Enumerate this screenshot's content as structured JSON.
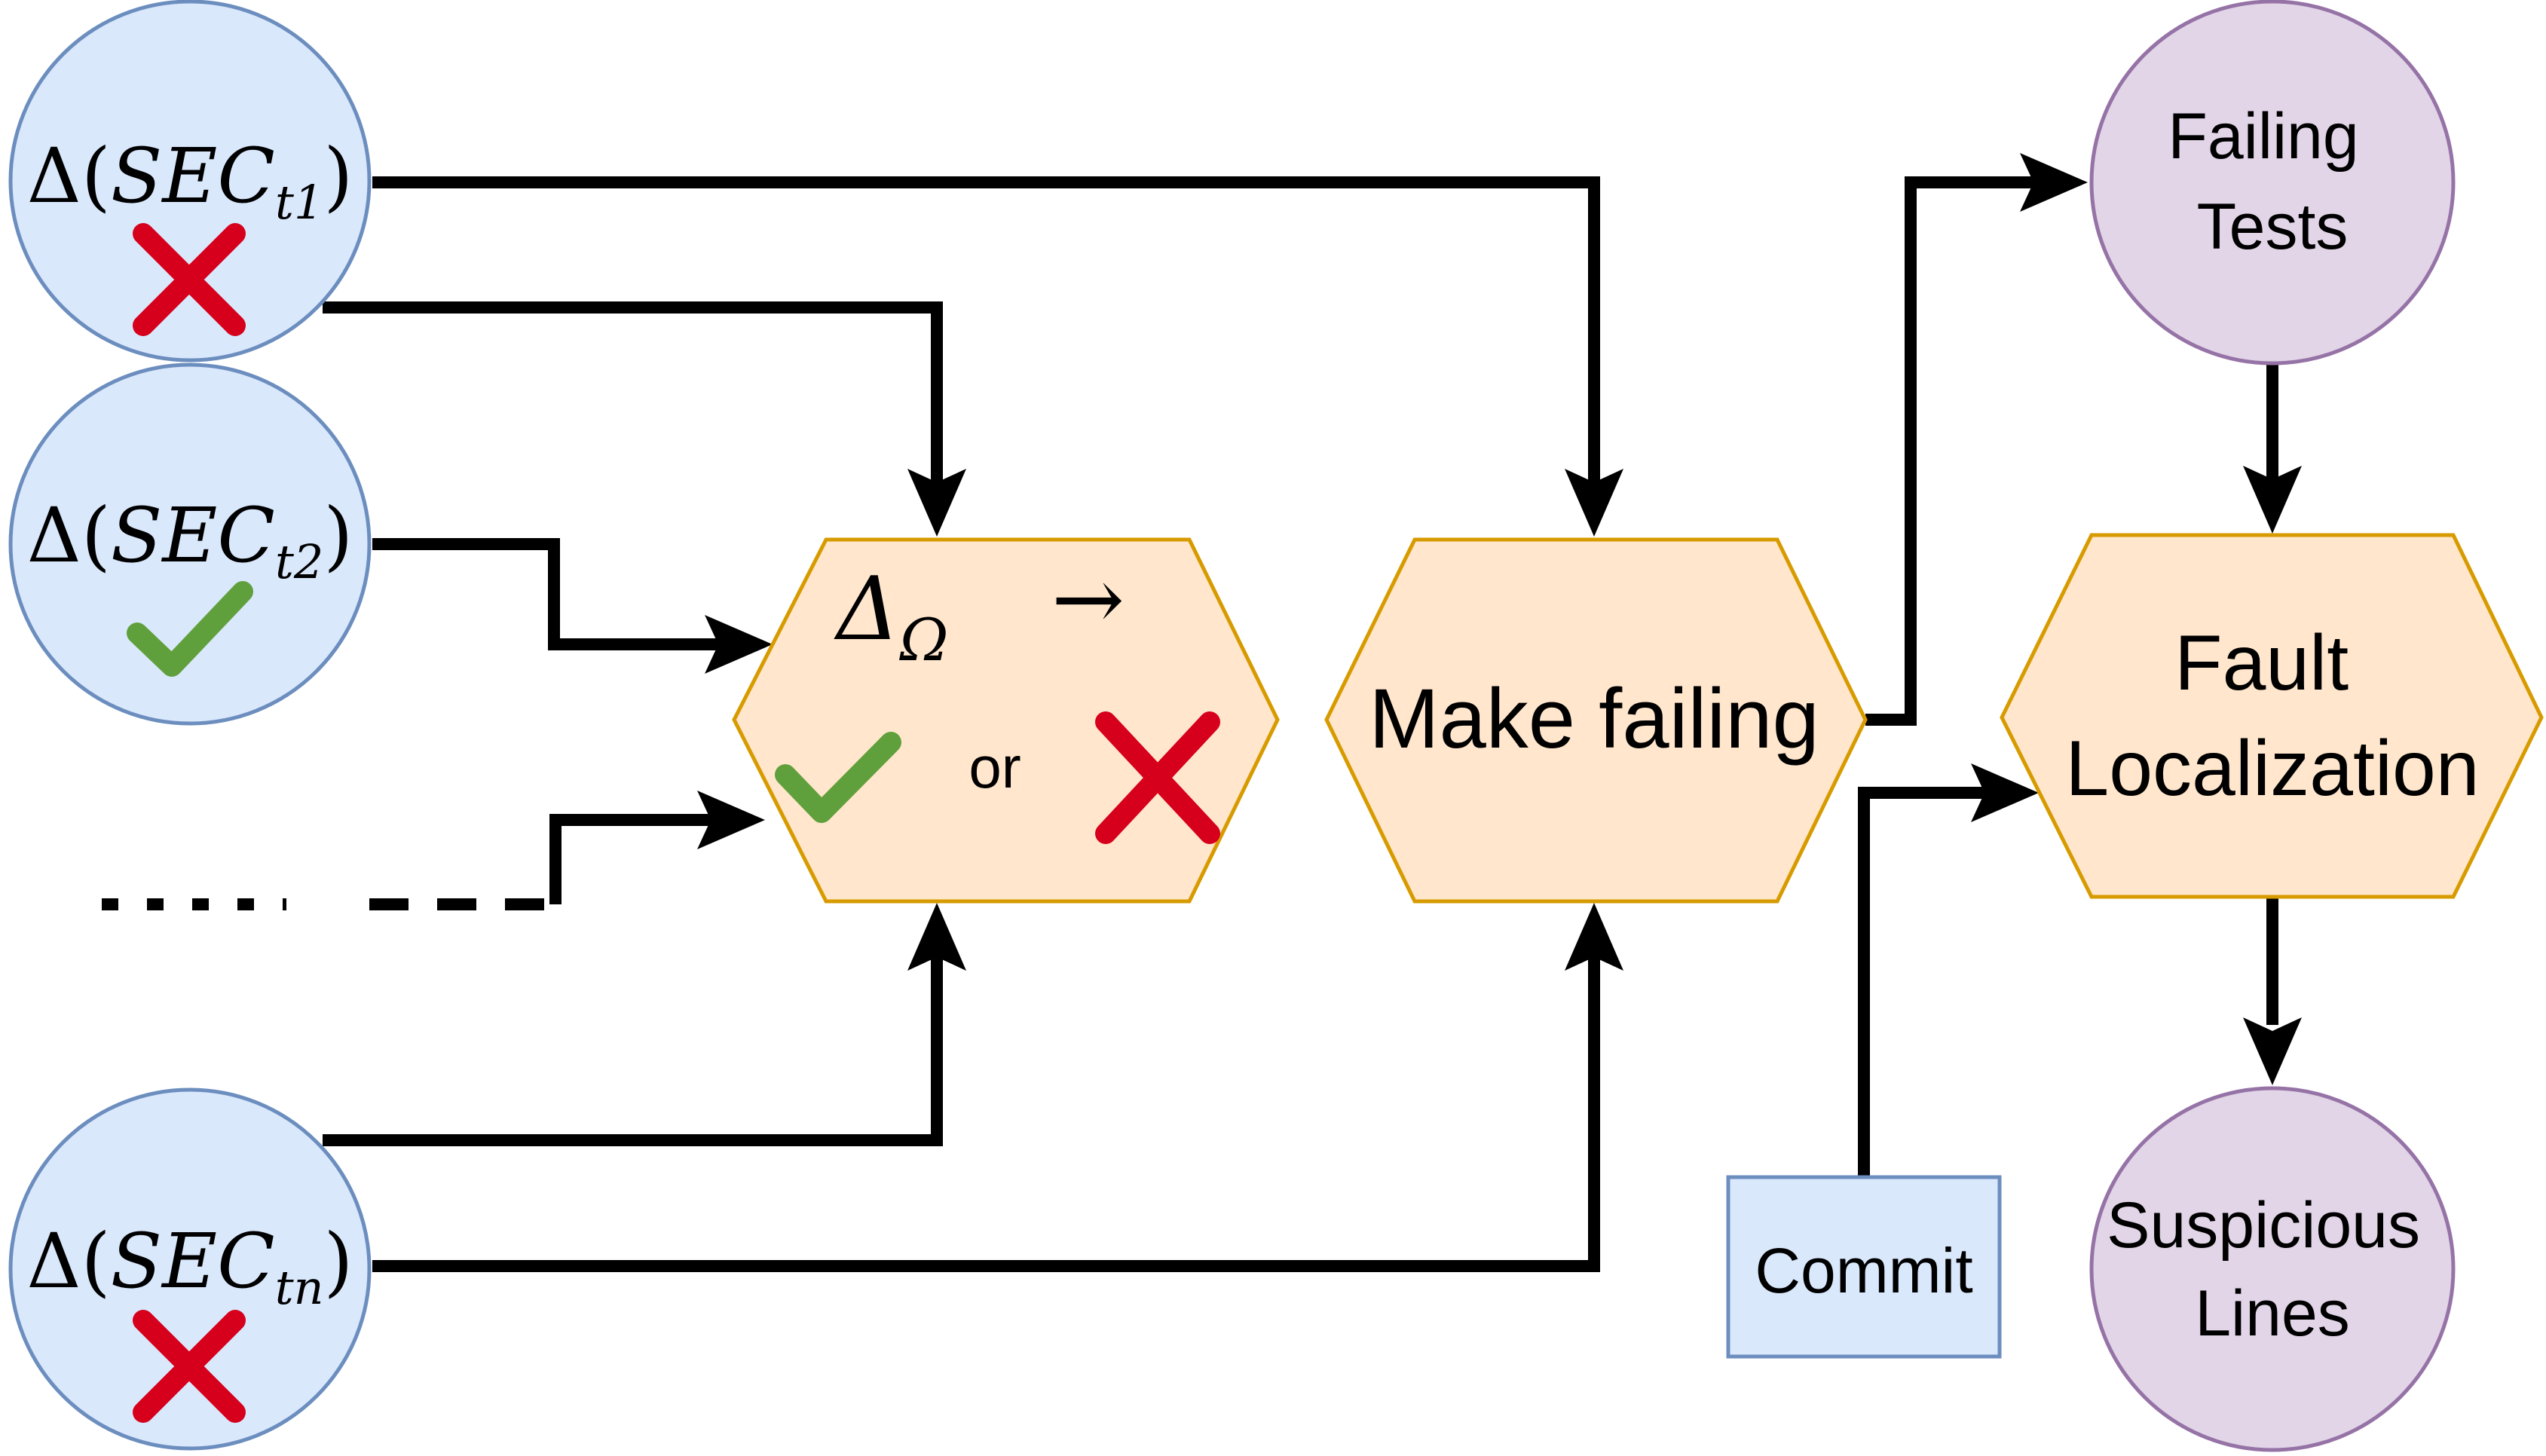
{
  "nodes": {
    "sec_t1": {
      "delta": "Δ(",
      "name": "SEC",
      "sub": "t1",
      "close": ")",
      "status": "cross"
    },
    "sec_t2": {
      "delta": "Δ(",
      "name": "SEC",
      "sub": "t2",
      "close": ")",
      "status": "check"
    },
    "sec_tn": {
      "delta": "Δ(",
      "name": "SEC",
      "sub": "tn",
      "close": ")",
      "status": "cross"
    },
    "delta_omega": {
      "symbol": "Δ",
      "sub": "Ω",
      "arrow": "→",
      "or_label": "or"
    },
    "make_failing": {
      "label": "Make failing"
    },
    "failing_tests": {
      "line1": "Failing",
      "line2": "Tests"
    },
    "fault_localization": {
      "line1": "Fault",
      "line2": "Localization"
    },
    "suspicious_lines": {
      "line1": "Suspicious",
      "line2": "Lines"
    },
    "commit": {
      "label": "Commit"
    }
  },
  "colors": {
    "blue_fill": "#dae8fc",
    "blue_stroke": "#6c8ebf",
    "orange_fill": "#ffe6cc",
    "orange_stroke": "#d79b00",
    "purple_fill": "#e1d5e7",
    "purple_stroke": "#9673a6",
    "check": "#60a03c",
    "cross": "#d6001c",
    "edge": "#000000"
  }
}
